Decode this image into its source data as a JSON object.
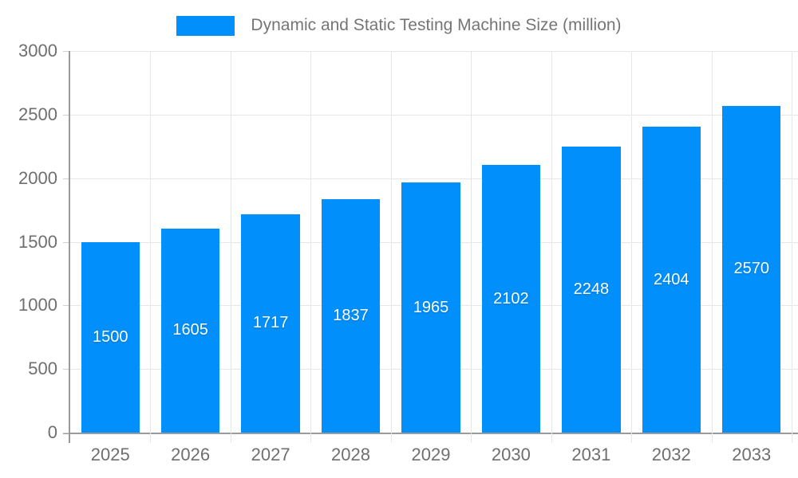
{
  "legend": {
    "label": "Dynamic and Static Testing Machine Size (million)",
    "swatch_color": "#008FFB",
    "position": "top"
  },
  "chart_data": {
    "type": "bar",
    "title": "Dynamic and Static Testing Machine Size (million)",
    "categories": [
      "2025",
      "2026",
      "2027",
      "2028",
      "2029",
      "2030",
      "2031",
      "2032",
      "2033"
    ],
    "series": [
      {
        "name": "Dynamic and Static Testing Machine Size (million)",
        "values": [
          1500,
          1605,
          1717,
          1837,
          1965,
          2102,
          2248,
          2404,
          2570
        ]
      }
    ],
    "data_labels": [
      "1500",
      "1605",
      "1717",
      "1837",
      "1965",
      "2102",
      "2248",
      "2404",
      "2570"
    ],
    "xlabel": "",
    "ylabel": "",
    "ylim": [
      0,
      3000
    ],
    "yticks": [
      0,
      500,
      1000,
      1500,
      2000,
      2500,
      3000
    ],
    "grid": true,
    "legend_position": "top"
  },
  "colors": {
    "bar": "#008FFB",
    "grid": "#e7e7e7",
    "axis": "#9a9a9a",
    "tick": "#cfcfcf",
    "axis_text": "#6f6f6f",
    "legend_text": "#757575",
    "data_label": "#ffffff",
    "background": "#ffffff"
  }
}
